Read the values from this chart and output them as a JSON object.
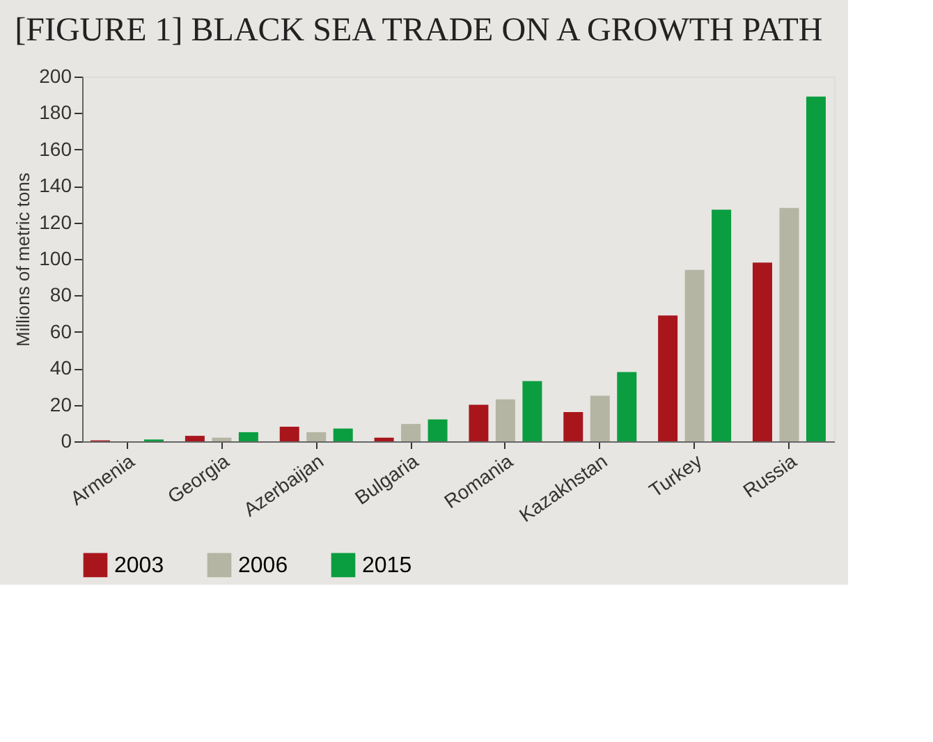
{
  "chart_data": {
    "type": "bar",
    "title": "[FIGURE 1] BLACK SEA TRADE ON A GROWTH PATH",
    "ylabel": "Millions of metric tons",
    "categories": [
      "Armenia",
      "Georgia",
      "Azerbaijan",
      "Bulgaria",
      "Romania",
      "Kazakhstan",
      "Turkey",
      "Russia"
    ],
    "series": [
      {
        "name": "2003",
        "color": "#a8161c",
        "values": [
          0.5,
          3,
          8,
          2,
          20,
          16,
          69,
          98
        ]
      },
      {
        "name": "2006",
        "color": "#b5b5a3",
        "values": [
          null,
          2,
          5,
          9.5,
          23,
          25,
          94,
          128
        ]
      },
      {
        "name": "2015",
        "color": "#0a9e40",
        "values": [
          1,
          5,
          7,
          12,
          33,
          38,
          127,
          189
        ]
      }
    ],
    "ylim": [
      0,
      200
    ],
    "yticks": [
      0,
      20,
      40,
      60,
      80,
      100,
      120,
      140,
      160,
      180,
      200
    ],
    "grid": false,
    "legend": "bottom"
  }
}
